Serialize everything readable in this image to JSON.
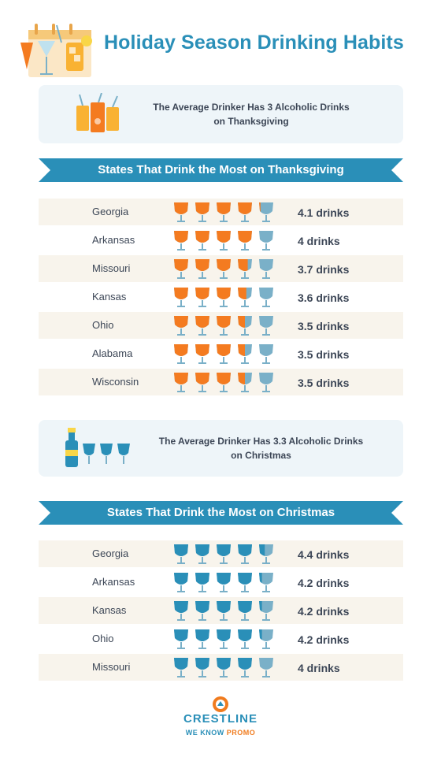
{
  "title": "Holiday Season Drinking Habits",
  "colors": {
    "accent": "#2a8fb8",
    "thanksgiving_fill": "#f47b20",
    "christmas_fill": "#2a8fb8",
    "glass_outline": "#7ab0c8",
    "row_shade": "#f8f4ec"
  },
  "thanksgiving_stat": {
    "line1": "The Average Drinker Has 3 Alcoholic Drinks",
    "line2": "on Thanksgiving",
    "icon": "cocktail-glasses-icon"
  },
  "christmas_stat": {
    "line1": "The Average Drinker Has 3.3 Alcoholic Drinks",
    "line2": "on Christmas",
    "icon": "champagne-bottle-icon"
  },
  "brand": {
    "name": "CRESTLINE",
    "tagline_part1": "WE KNOW ",
    "tagline_part2": "PROMO"
  },
  "chart_data": [
    {
      "type": "bar",
      "title": "States That Drink the Most on Thanksgiving",
      "unit": "drinks",
      "scale_max": 5,
      "categories": [
        "Georgia",
        "Arkansas",
        "Missouri",
        "Kansas",
        "Ohio",
        "Alabama",
        "Wisconsin"
      ],
      "values": [
        4.1,
        4,
        3.7,
        3.6,
        3.5,
        3.5,
        3.5
      ],
      "labels": [
        "4.1 drinks",
        "4 drinks",
        "3.7 drinks",
        "3.6 drinks",
        "3.5 drinks",
        "3.5 drinks",
        "3.5 drinks"
      ]
    },
    {
      "type": "bar",
      "title": "States That Drink the Most on Christmas",
      "unit": "drinks",
      "scale_max": 5,
      "categories": [
        "Georgia",
        "Arkansas",
        "Kansas",
        "Ohio",
        "Missouri"
      ],
      "values": [
        4.4,
        4.2,
        4.2,
        4.2,
        4
      ],
      "labels": [
        "4.4 drinks",
        "4.2 drinks",
        "4.2 drinks",
        "4.2 drinks",
        "4 drinks"
      ]
    }
  ]
}
